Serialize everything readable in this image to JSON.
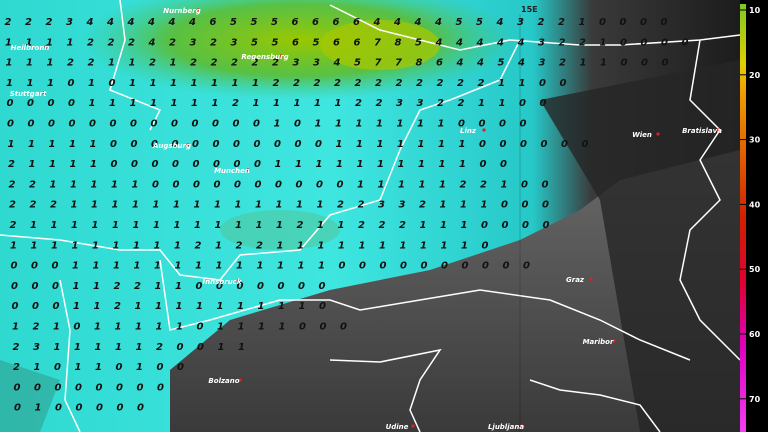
{
  "map": {
    "meridian_label": "15E",
    "cities": [
      "Nurnberg",
      "Heilbronn",
      "Regensburg",
      "Stuttgart",
      "Linz",
      "Wien",
      "Bratislava",
      "Augsburg",
      "Munchen",
      "Graz",
      "Innsbruck",
      "Maribor",
      "Bolzano",
      "Udine",
      "Ljubljana"
    ],
    "legend": {
      "ticks": [
        10,
        20,
        30,
        40,
        50,
        60,
        70
      ]
    },
    "grid": {
      "rows": [
        [
          2,
          2,
          2,
          3,
          4,
          4,
          4,
          4,
          4,
          4,
          6,
          5,
          5,
          5,
          6,
          6,
          6,
          6,
          4,
          4,
          4,
          4,
          5,
          5,
          4,
          3,
          2,
          2,
          1,
          0,
          0,
          0,
          0
        ],
        [
          1,
          1,
          1,
          1,
          2,
          2,
          2,
          4,
          2,
          3,
          2,
          3,
          5,
          5,
          6,
          5,
          6,
          6,
          7,
          8,
          5,
          4,
          4,
          4,
          4,
          4,
          3,
          2,
          2,
          1,
          0,
          0,
          0,
          0
        ],
        [
          1,
          1,
          1,
          2,
          2,
          1,
          1,
          2,
          1,
          2,
          2,
          2,
          2,
          2,
          3,
          3,
          4,
          5,
          7,
          7,
          8,
          6,
          4,
          4,
          5,
          4,
          3,
          2,
          1,
          1,
          0,
          0,
          0
        ],
        [
          1,
          1,
          1,
          0,
          1,
          0,
          1,
          1,
          1,
          1,
          1,
          1,
          1,
          2,
          2,
          2,
          2,
          2,
          2,
          2,
          2,
          2,
          2,
          2,
          1,
          1,
          0,
          0
        ],
        [
          0,
          0,
          0,
          0,
          1,
          1,
          1,
          1,
          1,
          1,
          1,
          2,
          1,
          1,
          1,
          1,
          1,
          2,
          2,
          3,
          3,
          2,
          2,
          1,
          1,
          0,
          0
        ],
        [
          0,
          0,
          0,
          0,
          0,
          0,
          0,
          0,
          0,
          0,
          0,
          0,
          0,
          1,
          0,
          1,
          1,
          1,
          1,
          1,
          1,
          1,
          0,
          0,
          0,
          0
        ],
        [
          1,
          1,
          1,
          1,
          1,
          0,
          0,
          0,
          0,
          0,
          0,
          0,
          0,
          0,
          0,
          0,
          1,
          1,
          1,
          1,
          1,
          1,
          1,
          0,
          0,
          0,
          0,
          0,
          0
        ],
        [
          2,
          1,
          1,
          1,
          1,
          0,
          0,
          0,
          0,
          0,
          0,
          0,
          0,
          1,
          1,
          1,
          1,
          1,
          1,
          1,
          1,
          1,
          1,
          0,
          0
        ],
        [
          2,
          2,
          1,
          1,
          1,
          1,
          1,
          0,
          0,
          0,
          0,
          0,
          0,
          0,
          0,
          0,
          0,
          1,
          1,
          1,
          1,
          1,
          2,
          2,
          1,
          0,
          0
        ],
        [
          2,
          2,
          2,
          1,
          1,
          1,
          1,
          1,
          1,
          1,
          1,
          1,
          1,
          1,
          1,
          1,
          2,
          2,
          3,
          3,
          2,
          1,
          1,
          1,
          0,
          0,
          0
        ],
        [
          2,
          1,
          1,
          1,
          1,
          1,
          1,
          1,
          1,
          1,
          1,
          1,
          1,
          1,
          2,
          1,
          1,
          2,
          2,
          2,
          1,
          1,
          1,
          0,
          0,
          0,
          0
        ],
        [
          1,
          1,
          1,
          1,
          1,
          1,
          1,
          1,
          1,
          2,
          1,
          2,
          2,
          1,
          1,
          1,
          1,
          1,
          1,
          1,
          1,
          1,
          1,
          0
        ],
        [
          0,
          0,
          0,
          1,
          1,
          1,
          1,
          1,
          1,
          1,
          1,
          1,
          1,
          1,
          1,
          1,
          0,
          0,
          0,
          0,
          0,
          0,
          0,
          0,
          0,
          0
        ],
        [
          0,
          0,
          0,
          1,
          1,
          2,
          2,
          1,
          1,
          0,
          0,
          0,
          0,
          0,
          0,
          0
        ],
        [
          0,
          0,
          0,
          1,
          1,
          2,
          1,
          1,
          1,
          1,
          1,
          1,
          1,
          1,
          1,
          0
        ],
        [
          1,
          2,
          1,
          0,
          1,
          1,
          1,
          1,
          1,
          0,
          1,
          1,
          1,
          1,
          0,
          0,
          0
        ],
        [
          2,
          3,
          1,
          1,
          1,
          1,
          1,
          2,
          0,
          0,
          1,
          1
        ],
        [
          2,
          1,
          0,
          1,
          1,
          0,
          1,
          0,
          0
        ],
        [
          0,
          0,
          0,
          0,
          0,
          0,
          0,
          0
        ],
        [
          0,
          1,
          0,
          0,
          0,
          0,
          0
        ]
      ]
    }
  }
}
